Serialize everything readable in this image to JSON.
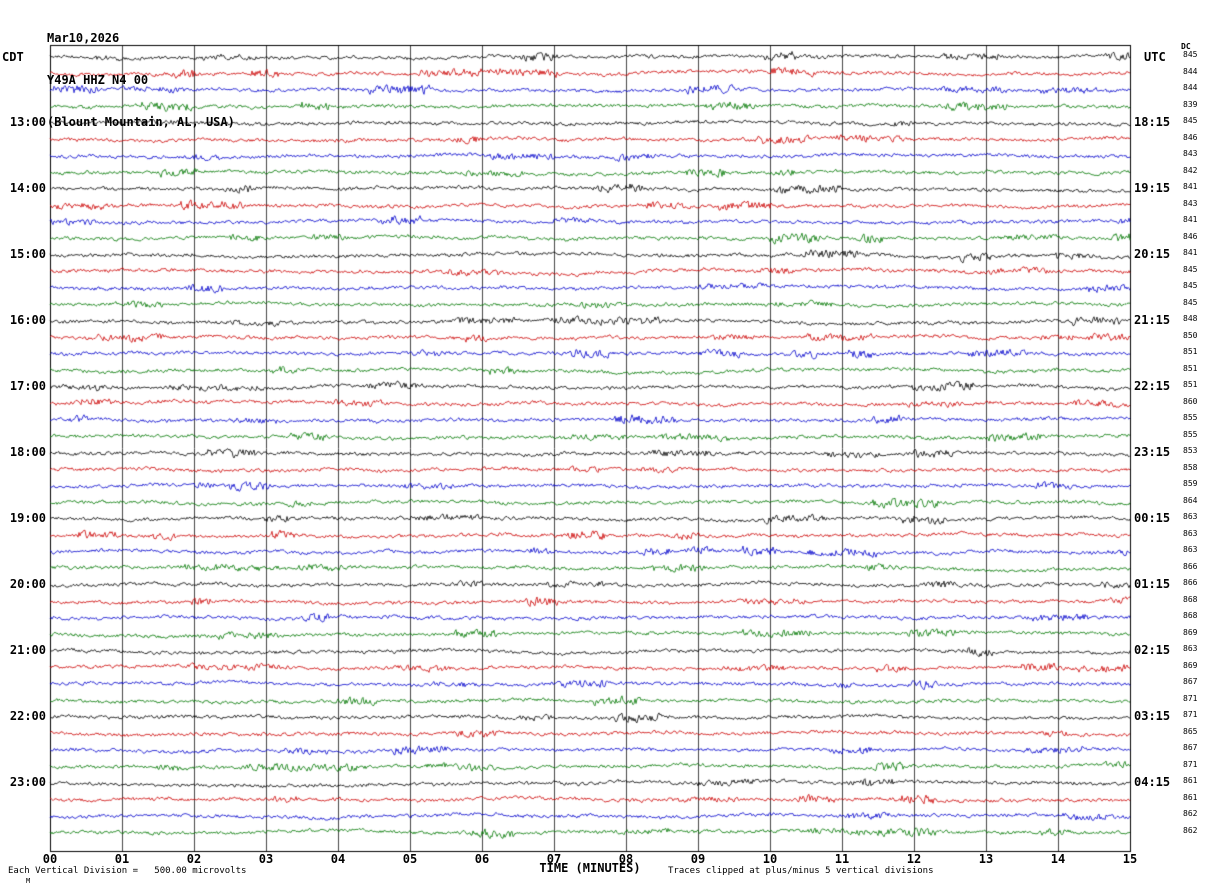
{
  "header": {
    "date": "Mar10,2026",
    "station": "Y49A HHZ N4 00",
    "location": "(Blount Mountain, AL, USA)",
    "left_tz": "CDT",
    "right_tz": "UTC",
    "dc_header": "DC"
  },
  "time_labels": {
    "cdt": [
      {
        "row": 4,
        "text": "13:00"
      },
      {
        "row": 8,
        "text": "14:00"
      },
      {
        "row": 12,
        "text": "15:00"
      },
      {
        "row": 16,
        "text": "16:00"
      },
      {
        "row": 20,
        "text": "17:00"
      },
      {
        "row": 24,
        "text": "18:00"
      },
      {
        "row": 28,
        "text": "19:00"
      },
      {
        "row": 32,
        "text": "20:00"
      },
      {
        "row": 36,
        "text": "21:00"
      },
      {
        "row": 40,
        "text": "22:00"
      },
      {
        "row": 44,
        "text": "23:00"
      }
    ],
    "utc": [
      {
        "row": 4,
        "text": "18:15"
      },
      {
        "row": 8,
        "text": "19:15"
      },
      {
        "row": 12,
        "text": "20:15"
      },
      {
        "row": 16,
        "text": "21:15"
      },
      {
        "row": 20,
        "text": "22:15"
      },
      {
        "row": 24,
        "text": "23:15"
      },
      {
        "row": 28,
        "text": "00:15"
      },
      {
        "row": 32,
        "text": "01:15"
      },
      {
        "row": 36,
        "text": "02:15"
      },
      {
        "row": 40,
        "text": "03:15"
      },
      {
        "row": 44,
        "text": "04:15"
      }
    ]
  },
  "x_axis": {
    "ticks": [
      "00",
      "01",
      "02",
      "03",
      "04",
      "05",
      "06",
      "07",
      "08",
      "09",
      "10",
      "11",
      "12",
      "13",
      "14",
      "15"
    ],
    "label": "TIME (MINUTES)"
  },
  "footer": {
    "left": "Each Vertical Division =   500.00 microvolts",
    "right": "Traces clipped at plus/minus 5 vertical divisions",
    "corner_mark": "M"
  },
  "chart_data": {
    "type": "line",
    "subtype": "helicorder",
    "title": "Y49A HHZ N4 00 (Blount Mountain, AL, USA) Mar10,2026",
    "xlabel": "TIME (MINUTES)",
    "x_range_minutes": [
      0,
      15
    ],
    "rows": 48,
    "minutes_per_row": 15,
    "first_row_start_cdt": "12:00",
    "last_row_end_cdt": "24:00",
    "utc_offset_hours": -5,
    "trace_color_cycle": [
      "#000000",
      "#cc0000",
      "#0000cc",
      "#007700"
    ],
    "grid_color": "#444444",
    "vertical_division_microvolts": 500.0,
    "clip_divisions": 5,
    "dc_offsets": [
      845,
      844,
      844,
      839,
      845,
      846,
      843,
      842,
      841,
      843,
      841,
      846,
      841,
      845,
      845,
      845,
      848,
      850,
      851,
      851,
      851,
      860,
      855,
      855,
      853,
      858,
      859,
      864,
      863,
      863,
      863,
      866,
      866,
      868,
      868,
      869,
      863,
      869,
      867,
      871,
      871,
      865,
      867,
      871,
      861,
      861,
      862,
      862
    ],
    "signal": "continuous ambient seismic background noise on every row; no distinct event arrivals; waveform recreated procedurally"
  }
}
